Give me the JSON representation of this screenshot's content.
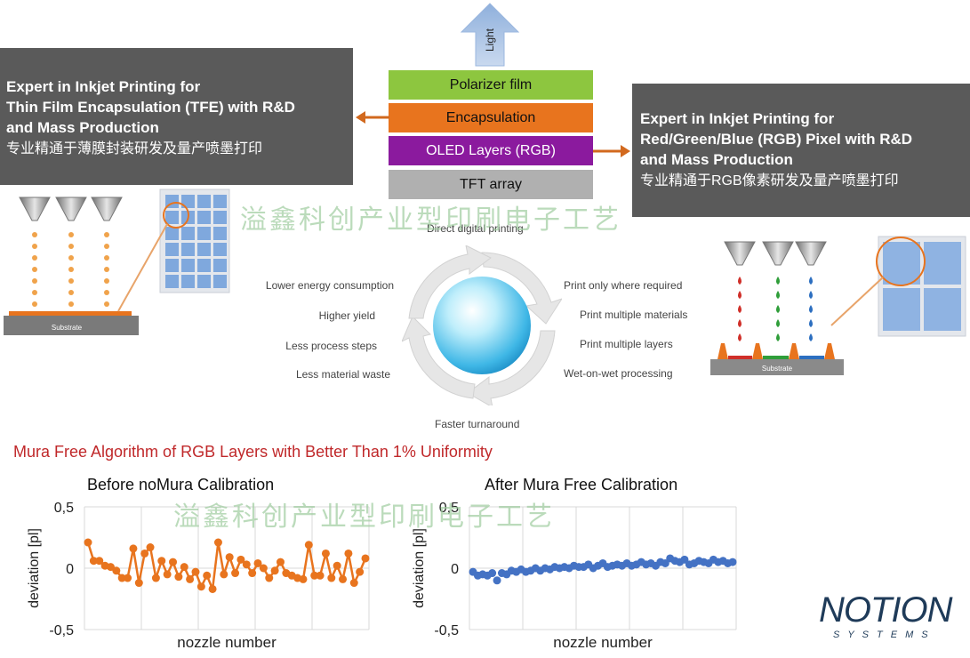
{
  "light_label": "Light",
  "stack": {
    "layers": [
      {
        "label": "Polarizer film",
        "color": "#8dc63f"
      },
      {
        "label": "Encapsulation",
        "color": "#e8741e"
      },
      {
        "label": "OLED Layers (RGB)",
        "color": "#8b1a9e"
      },
      {
        "label": "TFT array",
        "color": "#b0b0b0"
      }
    ]
  },
  "left_box": {
    "lines": [
      "Expert in Inkjet Printing for",
      "Thin Film Encapsulation (TFE) with R&D",
      "and Mass Production"
    ],
    "cn": "专业精通于薄膜封装研发及量产喷墨打印"
  },
  "right_box": {
    "lines": [
      "Expert in Inkjet Printing for",
      "Red/Green/Blue (RGB) Pixel with R&D",
      "and Mass Production"
    ],
    "cn": "专业精通于RGB像素研发及量产喷墨打印"
  },
  "substrate_label": "Substrate",
  "cycle": {
    "top": "Direct digital printing",
    "bottom": "Faster turnaround",
    "left": [
      "Lower energy consumption",
      "Higher yield",
      "Less process steps",
      "Less material waste"
    ],
    "right": [
      "Print only where required",
      "Print multiple materials",
      "Print multiple layers",
      "Wet-on-wet processing"
    ]
  },
  "watermark": "溢鑫科创产业型印刷电子工艺",
  "section_title": "Mura Free Algorithm of RGB Layers with Better Than 1% Uniformity",
  "colors": {
    "orange": "#e8741e",
    "blue": "#4472c4",
    "title_red": "#c0282a",
    "box_gray": "#5a5a5a"
  },
  "chart_data": [
    {
      "type": "line",
      "title": "Before noMura Calibration",
      "xlabel": "nozzle number",
      "ylabel": "deviation [pl]",
      "ylim": [
        -0.5,
        0.5
      ],
      "yticks": [
        "0,5",
        "0",
        "-0,5"
      ],
      "grid": true,
      "series": [
        {
          "color": "#e8741e",
          "values": [
            0.21,
            0.06,
            0.06,
            0.02,
            0.01,
            -0.02,
            -0.08,
            -0.08,
            0.16,
            -0.12,
            0.12,
            0.17,
            -0.08,
            0.06,
            -0.05,
            0.05,
            -0.07,
            0.01,
            -0.09,
            -0.03,
            -0.15,
            -0.06,
            -0.17,
            0.21,
            -0.05,
            0.09,
            -0.04,
            0.07,
            0.03,
            -0.04,
            0.04,
            0.0,
            -0.08,
            -0.02,
            0.05,
            -0.04,
            -0.06,
            -0.08,
            -0.09,
            0.19,
            -0.06,
            -0.06,
            0.12,
            -0.08,
            0.02,
            -0.09,
            0.12,
            -0.12,
            -0.03,
            0.08
          ]
        }
      ]
    },
    {
      "type": "scatter",
      "title": "After Mura Free Calibration",
      "xlabel": "nozzle number",
      "ylabel": "deviation [pl]",
      "ylim": [
        -0.5,
        0.5
      ],
      "yticks": [
        "0,5",
        "0",
        "-0,5"
      ],
      "grid": true,
      "series": [
        {
          "color": "#4472c4",
          "values": [
            -0.03,
            -0.06,
            -0.05,
            -0.06,
            -0.04,
            -0.1,
            -0.04,
            -0.05,
            -0.02,
            -0.03,
            -0.01,
            -0.03,
            -0.02,
            0.0,
            -0.02,
            0.0,
            -0.01,
            0.01,
            0.0,
            0.01,
            0.0,
            0.02,
            0.01,
            0.01,
            0.03,
            0.0,
            0.02,
            0.04,
            0.01,
            0.02,
            0.03,
            0.02,
            0.04,
            0.02,
            0.03,
            0.05,
            0.03,
            0.04,
            0.02,
            0.05,
            0.04,
            0.08,
            0.06,
            0.05,
            0.07,
            0.03,
            0.04,
            0.06,
            0.05,
            0.04,
            0.07,
            0.05,
            0.06,
            0.04,
            0.05
          ]
        }
      ]
    }
  ],
  "logo": {
    "main": "NOTION",
    "sub": "SYSTEMS"
  }
}
